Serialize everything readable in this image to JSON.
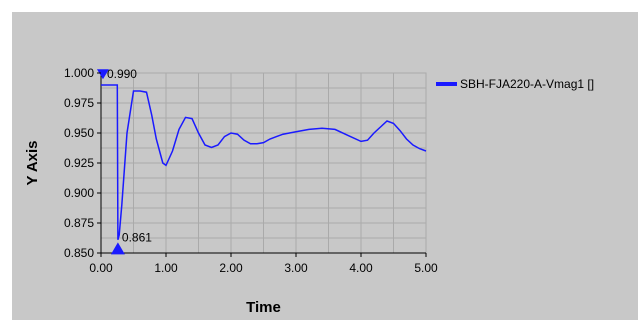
{
  "chart_data": {
    "type": "line",
    "xlabel": "Time",
    "ylabel": "Y Axis",
    "xlim": [
      0,
      5
    ],
    "ylim": [
      0.85,
      1.0
    ],
    "grid": true,
    "legend_position": "right",
    "x_ticks": [
      "0.00",
      "1.00",
      "2.00",
      "3.00",
      "4.00",
      "5.00"
    ],
    "y_ticks": [
      "0.850",
      "0.875",
      "0.900",
      "0.925",
      "0.950",
      "0.975",
      "1.000"
    ],
    "series": [
      {
        "name": "SBH-FJA220-A-Vmag1 []",
        "color": "#1a1aff",
        "x": [
          0,
          0.25,
          0.26,
          0.28,
          0.32,
          0.4,
          0.5,
          0.6,
          0.7,
          0.78,
          0.85,
          0.95,
          1.0,
          1.1,
          1.2,
          1.3,
          1.4,
          1.5,
          1.6,
          1.7,
          1.8,
          1.9,
          2.0,
          2.1,
          2.2,
          2.3,
          2.4,
          2.5,
          2.6,
          2.7,
          2.8,
          2.9,
          3.0,
          3.2,
          3.4,
          3.6,
          3.8,
          4.0,
          4.1,
          4.2,
          4.3,
          4.4,
          4.5,
          4.6,
          4.7,
          4.8,
          4.9,
          5.0
        ],
        "y": [
          0.99,
          0.99,
          0.861,
          0.865,
          0.89,
          0.95,
          0.985,
          0.985,
          0.984,
          0.965,
          0.945,
          0.925,
          0.923,
          0.935,
          0.953,
          0.963,
          0.962,
          0.95,
          0.94,
          0.938,
          0.94,
          0.947,
          0.95,
          0.949,
          0.944,
          0.941,
          0.941,
          0.942,
          0.945,
          0.947,
          0.949,
          0.95,
          0.951,
          0.953,
          0.954,
          0.953,
          0.948,
          0.943,
          0.944,
          0.95,
          0.955,
          0.96,
          0.958,
          0.952,
          0.945,
          0.94,
          0.937,
          0.935
        ]
      }
    ],
    "markers": [
      {
        "x": 0.03,
        "y": 0.999,
        "label": "0.990",
        "shape": "triangle-down"
      },
      {
        "x": 0.26,
        "y": 0.853,
        "label": "0.861",
        "shape": "triangle-up"
      }
    ]
  }
}
